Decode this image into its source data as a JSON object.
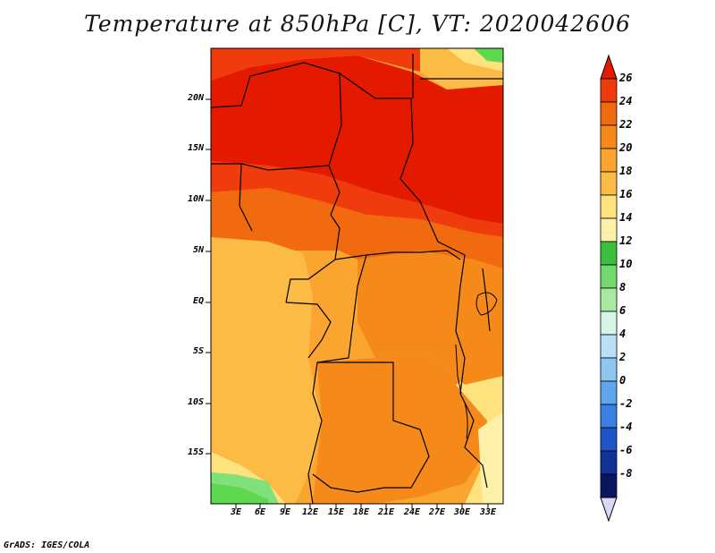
{
  "title": "Temperature at 850hPa [C], VT: 2020042606",
  "credit": "GrADS: IGES/COLA",
  "map": {
    "lat_labels": [
      "20N",
      "15N",
      "10N",
      "5N",
      "EQ",
      "5S",
      "10S",
      "15S"
    ],
    "lon_labels": [
      "3E",
      "6E",
      "9E",
      "12E",
      "15E",
      "18E",
      "21E",
      "24E",
      "27E",
      "30E",
      "33E"
    ],
    "lat_range": [
      -19.5,
      24.5
    ],
    "lon_range": [
      0.5,
      34.8
    ],
    "zones": {
      "hot_north": "#e41a00",
      "warm_red": "#f03c0c",
      "orange_24": "#f26a10",
      "orange_22": "#f58a1a",
      "orange_20": "#f9a530",
      "amber_18": "#fbbb45",
      "light_16": "#fde27e",
      "pale_14": "#fef0a8",
      "green_12": "#5ed84f",
      "green_10": "#80e07a"
    }
  },
  "colorbar": {
    "labels": [
      "26",
      "24",
      "22",
      "20",
      "18",
      "16",
      "14",
      "12",
      "10",
      "8",
      "6",
      "4",
      "2",
      "0",
      "-2",
      "-4",
      "-6",
      "-8"
    ],
    "colors": [
      "#e41a00",
      "#f03c0c",
      "#f26a10",
      "#f58a1a",
      "#f9a530",
      "#fbbb45",
      "#fde27e",
      "#fef0a8",
      "#3cbf3c",
      "#72d96c",
      "#a8eaa0",
      "#d6f5e6",
      "#b8e0f8",
      "#8ec7f2",
      "#5fa6ec",
      "#3a80e2",
      "#1f55c8",
      "#123296",
      "#0a1560"
    ],
    "end_low_color": "#d8d8f5"
  }
}
